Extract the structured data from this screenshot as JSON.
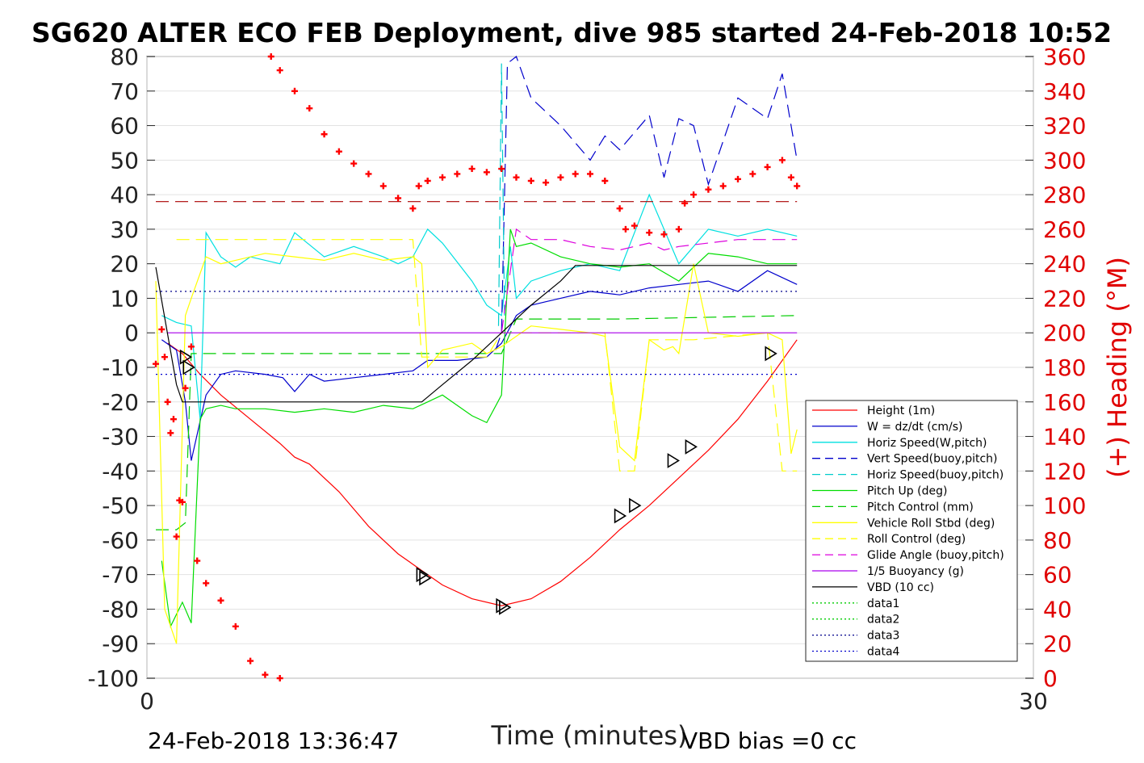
{
  "chart_data": {
    "type": "line",
    "title": "SG620 ALTER ECO FEB Deployment, dive 985 started 24-Feb-2018 10:52",
    "xlabel": "Time (minutes)",
    "ylabel_right": "(+) Heading (°M)",
    "xlim": [
      0,
      30
    ],
    "ylim": [
      -100,
      80
    ],
    "ylim_right": [
      0,
      360
    ],
    "x_ticks": [
      "0",
      "30"
    ],
    "y_ticks": [
      "80",
      "70",
      "60",
      "50",
      "40",
      "30",
      "20",
      "10",
      "0",
      "-10",
      "-20",
      "-30",
      "-40",
      "-50",
      "-60",
      "-70",
      "-80",
      "-90",
      "-100"
    ],
    "y_ticks_right": [
      "360",
      "340",
      "320",
      "300",
      "280",
      "260",
      "240",
      "220",
      "200",
      "180",
      "160",
      "140",
      "120",
      "100",
      "80",
      "60",
      "40",
      "20",
      "0"
    ],
    "grid": true,
    "legend_position": "lower-right",
    "footer_left": "24-Feb-2018 13:36:47",
    "footer_right": "VBD bias =0 cc",
    "series": [
      {
        "name": "Height (1m)",
        "color": "#ff0000",
        "style": "solid",
        "x": [
          0.7,
          1.2,
          1.8,
          2.5,
          3.5,
          4.5,
          5.0,
          5.5,
          6.5,
          7.5,
          8.5,
          9.5,
          10.0,
          11.0,
          12.0,
          13.0,
          14.0,
          15.0,
          16.0,
          17.0,
          18.0,
          19.0,
          20.0,
          21.0,
          22.0
        ],
        "y": [
          -3,
          -6,
          -12,
          -18,
          -25,
          -32,
          -36,
          -38,
          -46,
          -56,
          -64,
          -70,
          -73,
          -77,
          -79,
          -77,
          -72,
          -65,
          -57,
          -50,
          -42,
          -34,
          -25,
          -14,
          -2
        ]
      },
      {
        "name": "W = dz/dt (cm/s)",
        "color": "#0000cc",
        "style": "solid",
        "x": [
          0.5,
          1.0,
          1.3,
          1.5,
          2.0,
          2.5,
          3.0,
          4.0,
          4.6,
          5.0,
          5.5,
          6.0,
          7.0,
          8.0,
          9.0,
          9.5,
          10.5,
          11.5,
          12.0,
          12.5,
          13.0,
          13.5,
          14.0,
          15.0,
          16.0,
          17.0,
          18.0,
          19.0,
          20.0,
          21.0,
          22.0
        ],
        "y": [
          -2,
          -5,
          -20,
          -37,
          -18,
          -12,
          -11,
          -12,
          -13,
          -17,
          -12,
          -14,
          -13,
          -12,
          -11,
          -8,
          -8,
          -7,
          -3,
          5,
          8,
          9,
          10,
          12,
          11,
          13,
          14,
          15,
          12,
          18,
          14
        ]
      },
      {
        "name": "Horiz Speed(W,pitch)",
        "color": "#00e0e0",
        "style": "solid",
        "x": [
          0.5,
          1.0,
          1.5,
          1.8,
          2.0,
          2.5,
          3.0,
          3.5,
          4.5,
          5.0,
          6.0,
          7.0,
          8.0,
          8.5,
          9.0,
          9.5,
          10.0,
          11.0,
          11.5,
          12.0,
          12.3,
          12.5,
          13.0,
          14.0,
          15.0,
          16.0,
          17.0,
          18.0,
          19.0,
          20.0,
          21.0,
          22.0
        ],
        "y": [
          5,
          3,
          2,
          -25,
          29,
          22,
          19,
          22,
          20,
          29,
          22,
          25,
          22,
          20,
          22,
          30,
          26,
          15,
          8,
          5,
          25,
          10,
          15,
          18,
          20,
          18,
          40,
          20,
          30,
          28,
          30,
          28
        ]
      },
      {
        "name": "Vert Speed(buoy,pitch)",
        "color": "#0000cc",
        "style": "dashed",
        "x": [
          11.8,
          12.0,
          12.2,
          12.5,
          13.0,
          14.0,
          15.0,
          15.5,
          16.0,
          17.0,
          17.5,
          18.0,
          18.5,
          19.0,
          20.0,
          21.0,
          21.5,
          22.0
        ],
        "y": [
          -5,
          0,
          78,
          80,
          68,
          60,
          50,
          57,
          53,
          63,
          45,
          62,
          60,
          43,
          68,
          62,
          75,
          50
        ]
      },
      {
        "name": "Horiz Speed(buoy,pitch)",
        "color": "#00cccc",
        "style": "dashed",
        "x": [
          11.9,
          12.0,
          12.1
        ],
        "y": [
          2,
          78,
          5
        ]
      },
      {
        "name": "Pitch Up (deg)",
        "color": "#00dd00",
        "style": "solid",
        "x": [
          0.5,
          0.8,
          1.2,
          1.5,
          1.8,
          2.0,
          2.5,
          3.0,
          4.0,
          5.0,
          6.0,
          7.0,
          8.0,
          9.0,
          9.5,
          10.0,
          11.0,
          11.5,
          12.0,
          12.3,
          12.5,
          13.0,
          14.0,
          15.0,
          16.0,
          17.0,
          18.0,
          19.0,
          20.0,
          21.0,
          22.0
        ],
        "y": [
          -66,
          -85,
          -78,
          -84,
          -25,
          -22,
          -21,
          -22,
          -22,
          -23,
          -22,
          -23,
          -21,
          -22,
          -20,
          -18,
          -24,
          -26,
          -18,
          30,
          25,
          26,
          22,
          20,
          19,
          20,
          15,
          23,
          22,
          20,
          20
        ]
      },
      {
        "name": "Pitch Control (mm)",
        "color": "#00cc00",
        "style": "dashed",
        "x": [
          0.3,
          1.0,
          1.3,
          1.5,
          9.0,
          11.5,
          12.0,
          12.5,
          16.0,
          22.0
        ],
        "y": [
          -57,
          -57,
          -55,
          -6,
          -6,
          -6,
          -6,
          4,
          4,
          5
        ]
      },
      {
        "name": "Vehicle Roll Stbd (deg)",
        "color": "#ffff00",
        "style": "solid",
        "x": [
          0.3,
          0.6,
          1.0,
          1.3,
          1.5,
          2.0,
          2.5,
          3.0,
          4.0,
          5.0,
          6.0,
          7.0,
          8.0,
          9.0,
          9.3,
          9.5,
          10.0,
          11.0,
          11.5,
          12.0,
          13.0,
          14.0,
          15.0,
          15.5,
          16.0,
          16.5,
          17.0,
          17.5,
          17.8,
          18.0,
          18.5,
          19.0,
          20.0,
          21.0,
          21.5,
          21.8,
          22.0
        ],
        "y": [
          15,
          -80,
          -90,
          5,
          10,
          22,
          20,
          21,
          23,
          22,
          21,
          23,
          21,
          22,
          20,
          -10,
          -5,
          -3,
          -6,
          -4,
          2,
          1,
          0,
          -1,
          -33,
          -37,
          -2,
          -5,
          -4,
          -6,
          20,
          0,
          -1,
          0,
          -2,
          -35,
          -28
        ]
      },
      {
        "name": "Roll Control (deg)",
        "color": "#ffff00",
        "style": "dashed",
        "x": [
          1.0,
          1.3,
          1.5,
          9.0,
          9.3,
          11.5,
          12.0,
          15.5,
          16.0,
          16.5,
          17.0,
          17.5,
          18.0,
          18.5,
          21.0,
          21.5,
          22.0
        ],
        "y": [
          27,
          27,
          27,
          27,
          -7,
          -7,
          0,
          0,
          -40,
          -40,
          -2,
          -2,
          -2,
          -2,
          0,
          -40,
          -40
        ]
      },
      {
        "name": "Glide Angle (buoy,pitch)",
        "color": "#dd00dd",
        "style": "dashed",
        "x": [
          12.0,
          12.5,
          13.0,
          14.0,
          15.0,
          16.0,
          17.0,
          17.5,
          18.0,
          19.0,
          20.0,
          21.0,
          22.0
        ],
        "y": [
          0,
          30,
          27,
          27,
          25,
          24,
          26,
          24,
          25,
          26,
          27,
          27,
          27
        ]
      },
      {
        "name": "1/5 Buoyancy (g)",
        "color": "#aa00ee",
        "style": "solid",
        "x": [
          0.7,
          12.0,
          12.1,
          22.0
        ],
        "y": [
          0,
          0,
          0,
          0
        ]
      },
      {
        "name": "VBD (10 cc)",
        "color": "#000000",
        "style": "solid",
        "x": [
          0.3,
          1.0,
          1.2,
          9.3,
          10.0,
          11.0,
          12.0,
          13.0,
          14.0,
          14.5,
          22.0
        ],
        "y": [
          19,
          -15,
          -20,
          -20,
          -15,
          -8,
          0,
          8,
          15,
          19.5,
          19.5
        ]
      },
      {
        "name": "data1",
        "color": "#00cc00",
        "style": "dotted",
        "x": [],
        "y": []
      },
      {
        "name": "data2",
        "color": "#00cc00",
        "style": "dotted",
        "x": [],
        "y": []
      },
      {
        "name": "data3",
        "color": "#00008b",
        "style": "dotted",
        "x": [
          0.3,
          22.0
        ],
        "y": [
          12,
          12
        ]
      },
      {
        "name": "data4",
        "color": "#0000cc",
        "style": "dotted",
        "x": [
          0.3,
          22.0
        ],
        "y": [
          -12,
          -12
        ]
      }
    ],
    "extra_lines": [
      {
        "color": "#aa0000",
        "style": "dashed",
        "x": [
          0.3,
          22.0
        ],
        "y": [
          38,
          38
        ]
      }
    ],
    "heading_points": {
      "color": "#ff0000",
      "x": [
        0.3,
        0.5,
        0.6,
        0.7,
        0.8,
        0.9,
        1.0,
        1.1,
        1.2,
        1.3,
        1.5,
        1.7,
        2.0,
        2.5,
        3.0,
        3.5,
        4.0,
        4.5,
        4.2,
        4.5,
        5.0,
        5.5,
        6.0,
        6.5,
        7.0,
        7.5,
        8.0,
        8.5,
        9.0,
        9.2,
        9.5,
        10.0,
        10.5,
        11.0,
        11.5,
        12.0,
        12.5,
        13.0,
        13.5,
        14.0,
        14.5,
        15.0,
        15.5,
        16.0,
        16.2,
        16.5,
        17.0,
        17.5,
        18.0,
        18.2,
        18.5,
        19.0,
        19.5,
        20.0,
        20.5,
        21.0,
        21.5,
        21.8,
        22.0
      ],
      "y": [
        182,
        202,
        186,
        160,
        142,
        150,
        82,
        103,
        102,
        168,
        192,
        68,
        55,
        45,
        30,
        10,
        2,
        0,
        360,
        352,
        340,
        330,
        315,
        305,
        298,
        292,
        285,
        278,
        272,
        285,
        288,
        290,
        292,
        295,
        293,
        295,
        290,
        288,
        287,
        290,
        292,
        292,
        288,
        272,
        260,
        262,
        258,
        257,
        260,
        275,
        280,
        283,
        285,
        289,
        292,
        296,
        300,
        290,
        285
      ]
    },
    "markers": {
      "color": "#000000",
      "points": [
        [
          1.3,
          -7
        ],
        [
          1.4,
          -10
        ],
        [
          9.3,
          -70
        ],
        [
          9.4,
          -71
        ],
        [
          12.0,
          -79
        ],
        [
          12.1,
          -79.5
        ],
        [
          16.0,
          -53
        ],
        [
          16.5,
          -50
        ],
        [
          17.8,
          -37
        ],
        [
          18.4,
          -33
        ],
        [
          21.1,
          -6
        ]
      ]
    }
  }
}
